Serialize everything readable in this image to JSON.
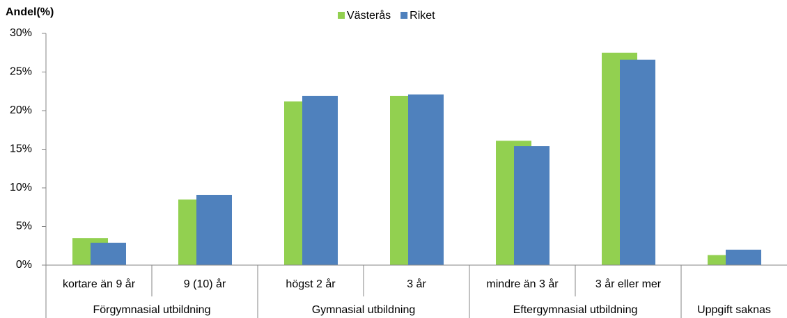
{
  "chart_data": {
    "type": "bar",
    "y_axis_title": "Andel(%)",
    "categories": [
      "kortare än 9 år",
      "9 (10) år",
      "högst 2 år",
      "3 år",
      "mindre än 3 år",
      "3 år eller mer",
      null
    ],
    "groups": [
      {
        "label": "Förgymnasial utbildning",
        "count": 2
      },
      {
        "label": "Gymnasial utbildning",
        "count": 2
      },
      {
        "label": "Eftergymnasial utbildning",
        "count": 2
      },
      {
        "label": "Uppgift saknas",
        "count": 1
      }
    ],
    "series": [
      {
        "name": "Västerås",
        "color": "#92d050",
        "values": [
          3.5,
          8.5,
          21.2,
          21.9,
          16.1,
          27.5,
          1.3
        ]
      },
      {
        "name": "Riket",
        "color": "#4f81bd",
        "values": [
          2.9,
          9.1,
          21.9,
          22.1,
          15.4,
          26.6,
          2.0
        ]
      }
    ],
    "ylim": [
      0,
      30
    ],
    "yticks": [
      {
        "value": 0,
        "label": "0%"
      },
      {
        "value": 5,
        "label": "5%"
      },
      {
        "value": 10,
        "label": "10%"
      },
      {
        "value": 15,
        "label": "15%"
      },
      {
        "value": 20,
        "label": "20%"
      },
      {
        "value": 25,
        "label": "25%"
      },
      {
        "value": 30,
        "label": "30%"
      }
    ],
    "legend": "top",
    "grid": false
  }
}
